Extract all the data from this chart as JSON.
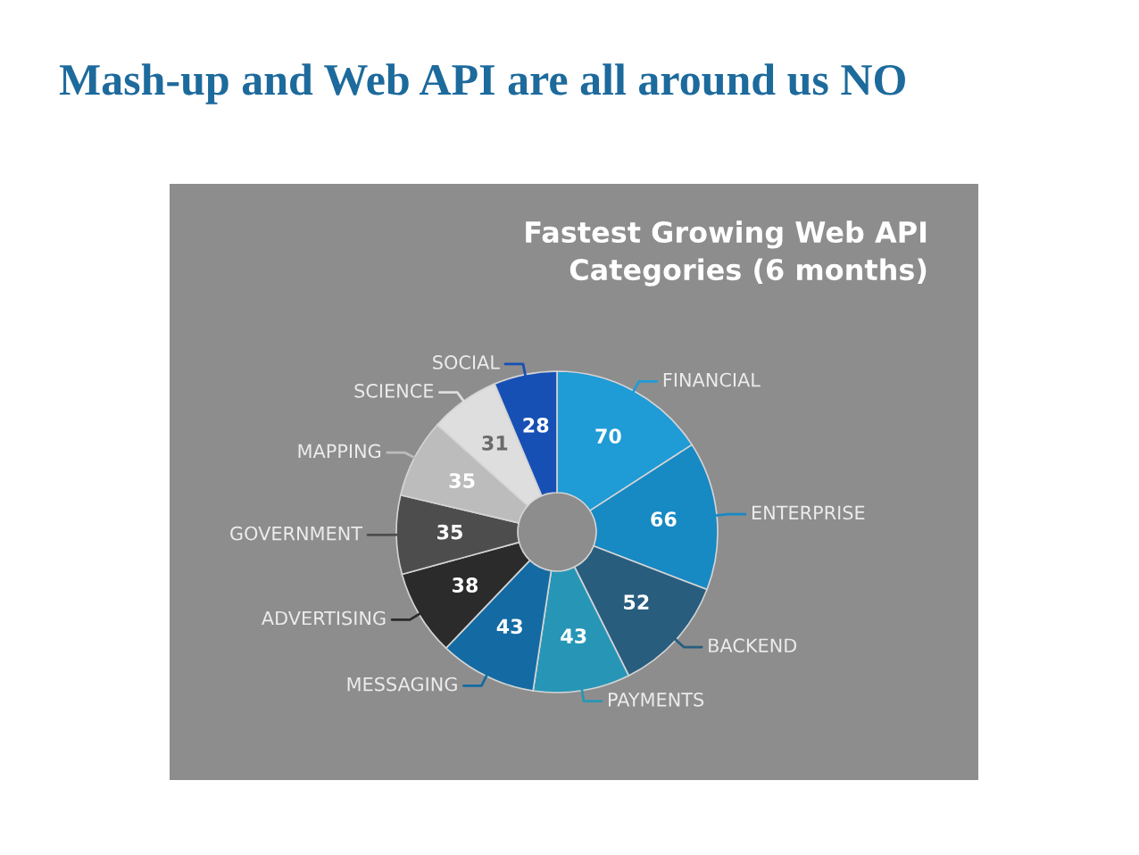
{
  "chart_data": {
    "type": "donut",
    "title": "Mash-up and Web API are all around us NO",
    "subtitle": "Fastest Growing Web API Categories (6 months)",
    "categories": [
      "FINANCIAL",
      "ENTERPRISE",
      "BACKEND",
      "PAYMENTS",
      "MESSAGING",
      "ADVERTISING",
      "GOVERNMENT",
      "MAPPING",
      "SCIENCE",
      "SOCIAL"
    ],
    "values": [
      70,
      66,
      52,
      43,
      43,
      38,
      35,
      35,
      31,
      28
    ],
    "colors": [
      "#1f9bd6",
      "#1789c3",
      "#285d7e",
      "#2796b6",
      "#146ba3",
      "#2b2b2b",
      "#4d4d4d",
      "#bcbcbc",
      "#dedede",
      "#1750b5"
    ],
    "data_labels": true
  }
}
